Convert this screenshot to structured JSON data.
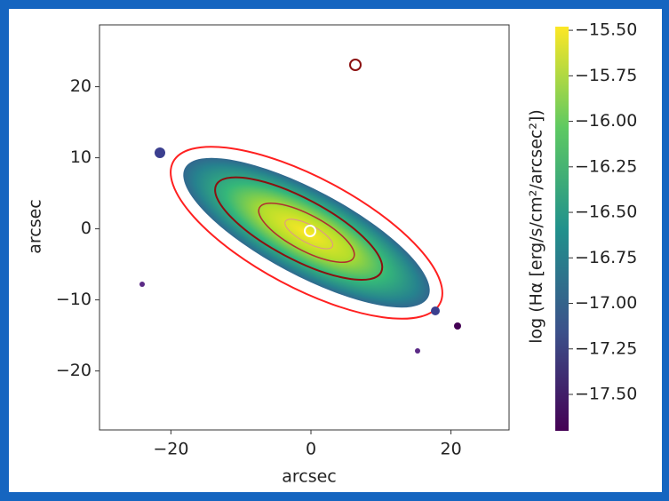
{
  "chart_data": {
    "type": "image",
    "xlabel": "arcsec",
    "ylabel": "arcsec",
    "xlim": [
      -30.2,
      28.3
    ],
    "ylim": [
      -28.3,
      28.7
    ],
    "xticks": [
      {
        "value": -20,
        "label": "−20"
      },
      0,
      20
    ],
    "yticks": [
      {
        "value": -20,
        "label": "−20"
      },
      {
        "value": -10,
        "label": "−10"
      },
      0,
      10,
      20
    ],
    "colorbar": {
      "label": "log (Hα [erg/s/cm²/arcsec²])",
      "lim": [
        -17.7,
        -15.48
      ],
      "ticks": [
        {
          "value": -15.5,
          "label": "−15.50"
        },
        {
          "value": -15.75,
          "label": "−15.75"
        },
        {
          "value": -16,
          "label": "−16.00"
        },
        {
          "value": -16.25,
          "label": "−16.25"
        },
        {
          "value": -16.5,
          "label": "−16.50"
        },
        {
          "value": -16.75,
          "label": "−16.75"
        },
        {
          "value": -17,
          "label": "−17.00"
        },
        {
          "value": -17.25,
          "label": "−17.25"
        },
        {
          "value": -17.5,
          "label": "−17.50"
        }
      ]
    }
  }
}
